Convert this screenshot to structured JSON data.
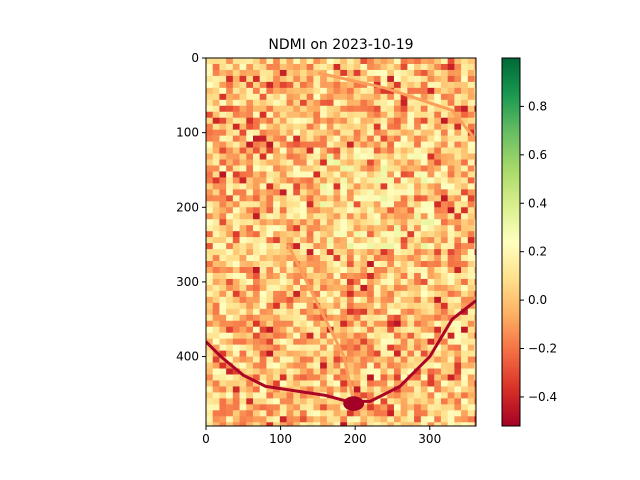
{
  "chart_data": {
    "type": "heatmap",
    "title": "NDMI on 2023-10-19",
    "xlim": [
      0,
      362
    ],
    "ylim": [
      493,
      0
    ],
    "x_ticks": [
      0,
      100,
      200,
      300
    ],
    "y_ticks": [
      0,
      100,
      200,
      300,
      400
    ],
    "xlabel": "",
    "ylabel": "",
    "colormap": "RdYlGn",
    "colormap_stops": [
      "#a50026",
      "#d73027",
      "#f46d43",
      "#fdae61",
      "#fee08b",
      "#ffffbf",
      "#d9ef8b",
      "#a6d96a",
      "#66bd63",
      "#1a9850",
      "#006837"
    ],
    "colorbar": {
      "range": [
        -0.52,
        1.0
      ],
      "ticks": [
        -0.4,
        -0.2,
        0.0,
        0.2,
        0.4,
        0.6,
        0.8
      ],
      "tick_labels": [
        "−0.4",
        "−0.2",
        "0.0",
        "0.2",
        "0.4",
        "0.6",
        "0.8"
      ]
    },
    "field_value_range": [
      -0.45,
      0.25
    ],
    "features": [
      {
        "kind": "road",
        "value": -0.5,
        "points": [
          [
            0,
            380
          ],
          [
            20,
            400
          ],
          [
            50,
            425
          ],
          [
            80,
            440
          ],
          [
            120,
            446
          ],
          [
            160,
            452
          ],
          [
            190,
            460
          ],
          [
            220,
            460
          ],
          [
            260,
            440
          ],
          [
            300,
            400
          ],
          [
            330,
            350
          ],
          [
            362,
            325
          ]
        ]
      },
      {
        "kind": "road",
        "value": -0.1,
        "points": [
          [
            150,
            20
          ],
          [
            240,
            40
          ],
          [
            330,
            70
          ],
          [
            362,
            110
          ]
        ]
      },
      {
        "kind": "road",
        "value": -0.1,
        "points": [
          [
            110,
            250
          ],
          [
            150,
            330
          ],
          [
            185,
            400
          ],
          [
            200,
            470
          ]
        ]
      },
      {
        "kind": "pond",
        "value": -0.52,
        "center": [
          198,
          463
        ],
        "radius": 14
      }
    ]
  }
}
